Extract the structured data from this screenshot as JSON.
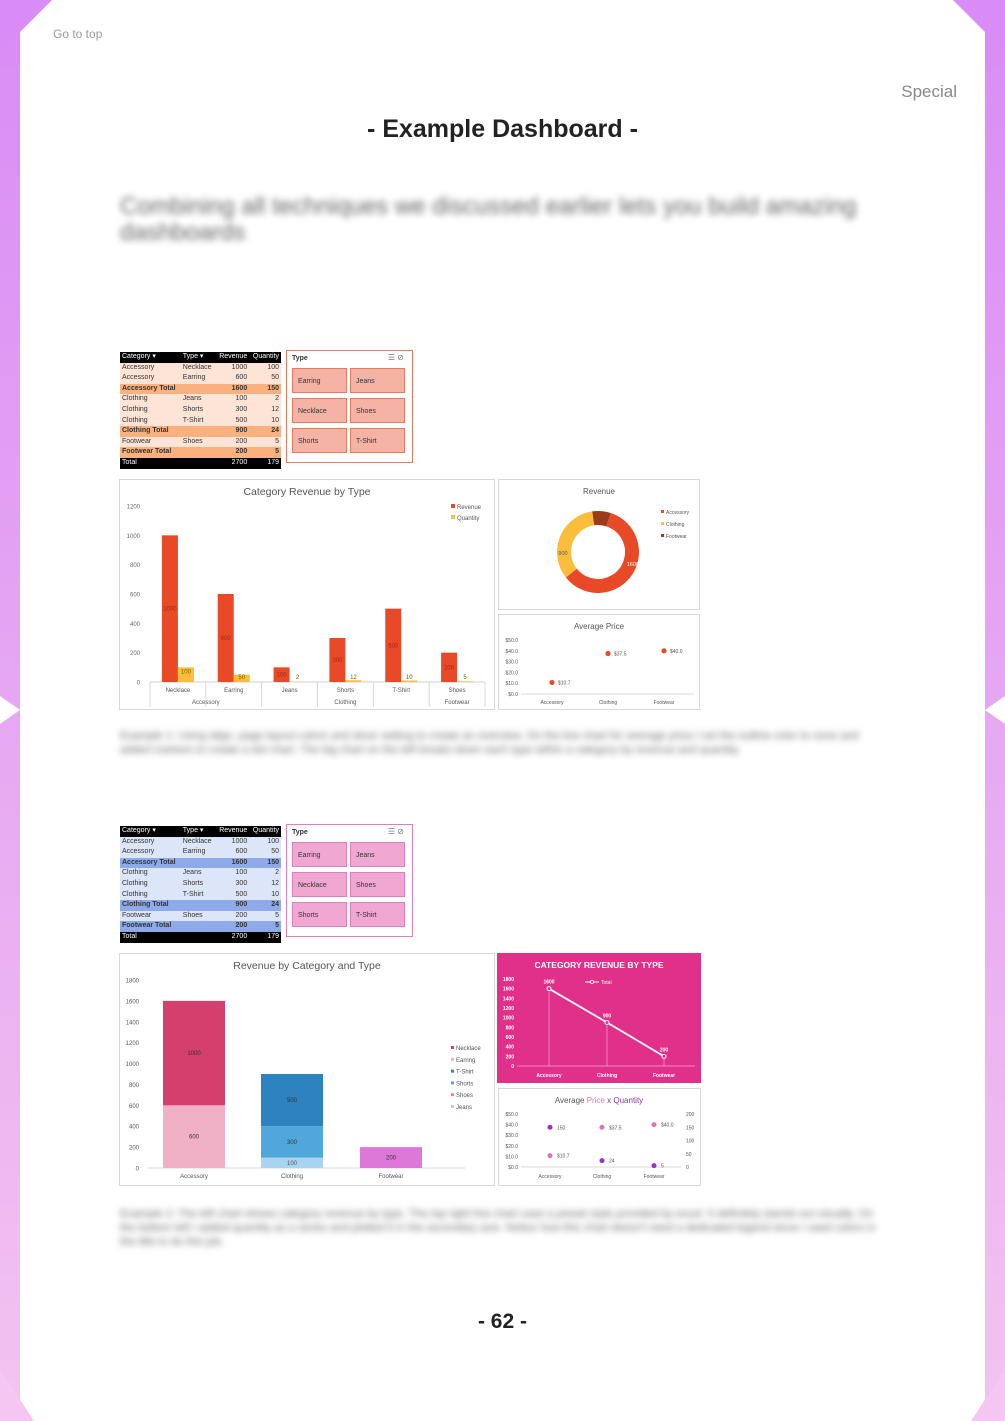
{
  "header": {
    "go_top": "Go to top",
    "section": "Special",
    "title": "- Example Dashboard -"
  },
  "intro": "Combining all techniques we discussed earlier lets you build amazing dashboards",
  "captions": {
    "example1": "Example 1: Using align, page layout colors and slicer setting to create an overview. On the line chart for average price I set the outline color to none and added markers to create a dot chart. The big chart on the left breaks down each type within a category by revenue and quantity.",
    "example2": "Example 2: The left chart shows category revenue by type. The top right line chart uses a preset style provided by excel. It definitely stands out visually. On the bottom left I added quantity as a series and plotted it in the secondary axis. Notice how this chart doesn't need a dedicated legend since I used colors in the title to do this job."
  },
  "page_number": "- 62 -",
  "pivot": {
    "headers": [
      "Category",
      "Type",
      "Revenue",
      "Quantity"
    ],
    "rows": [
      [
        "Accessory",
        "Necklace",
        "1000",
        "100"
      ],
      [
        "Accessory",
        "Earring",
        "600",
        "50"
      ],
      [
        "Accessory Total",
        "",
        "1600",
        "150"
      ],
      [
        "Clothing",
        "Jeans",
        "100",
        "2"
      ],
      [
        "Clothing",
        "Shorts",
        "300",
        "12"
      ],
      [
        "Clothing",
        "T-Shirt",
        "500",
        "10"
      ],
      [
        "Clothing Total",
        "",
        "900",
        "24"
      ],
      [
        "Footwear",
        "Shoes",
        "200",
        "5"
      ],
      [
        "Footwear Total",
        "",
        "200",
        "5"
      ],
      [
        "Total",
        "",
        "2700",
        "179"
      ]
    ]
  },
  "slicer": {
    "title": "Type",
    "items": [
      "Earring",
      "Jeans",
      "Necklace",
      "Shoes",
      "Shorts",
      "T-Shirt"
    ]
  },
  "colors": {
    "d1_header": "#000000",
    "d1_row": "#fde4d6",
    "d1_total": "#f9b27f",
    "d1_slicer_btn": "#f4b3a5",
    "d1_slicer_border": "#e9795f",
    "d2_row": "#dde5f8",
    "d2_total": "#8eaaea",
    "d2_slicer_btn": "#f0a8d3",
    "d2_slicer_border": "#df7fbd",
    "revenue": "#e84a27",
    "quantity": "#fbbe3c",
    "pink": "#e0308a"
  },
  "chart_data": [
    {
      "type": "bar",
      "title": "Category Revenue by Type",
      "categories": [
        "Necklace",
        "Earring",
        "Jeans",
        "Shorts",
        "T-Shirt",
        "Shoes"
      ],
      "groups": [
        {
          "name": "Accessory",
          "span": 2
        },
        {
          "name": "Clothing",
          "span": 3
        },
        {
          "name": "Footwear",
          "span": 1
        }
      ],
      "series": [
        {
          "name": "Revenue",
          "values": [
            1000,
            600,
            100,
            300,
            500,
            200
          ]
        },
        {
          "name": "Quantity",
          "values": [
            100,
            50,
            2,
            12,
            10,
            5
          ]
        }
      ],
      "ylim": [
        0,
        1200
      ],
      "yticks": [
        "0",
        "200",
        "400",
        "600",
        "800",
        "1000",
        "1200"
      ],
      "legend": "top-right"
    },
    {
      "type": "pie",
      "title": "Revenue",
      "labels": [
        "Accessory",
        "Clothing",
        "Footwear"
      ],
      "values": [
        1600,
        900,
        200
      ],
      "data_labels": [
        "1600",
        "900",
        ""
      ],
      "legend": "right"
    },
    {
      "type": "scatter",
      "title": "Average Price",
      "categories": [
        "Accessory",
        "Clothing",
        "Footwear"
      ],
      "values": [
        10.7,
        37.5,
        40.0
      ],
      "data_labels": [
        "$10.7",
        "$37.5",
        "$40.0"
      ],
      "ylim": [
        0,
        50
      ],
      "yticks": [
        "$0.0",
        "$10.0",
        "$20.0",
        "$30.0",
        "$40.0",
        "$50.0"
      ]
    },
    {
      "type": "bar",
      "stacked": true,
      "title": "Revenue by Category and Type",
      "categories": [
        "Accessory",
        "Clothing",
        "Footwear"
      ],
      "series": [
        {
          "name": "Necklace",
          "values": [
            1000,
            0,
            0
          ]
        },
        {
          "name": "Earring",
          "values": [
            600,
            0,
            0
          ]
        },
        {
          "name": "T-Shirt",
          "values": [
            0,
            500,
            0
          ]
        },
        {
          "name": "Shorts",
          "values": [
            0,
            300,
            0
          ]
        },
        {
          "name": "Shoes",
          "values": [
            0,
            0,
            200
          ]
        },
        {
          "name": "Jeans",
          "values": [
            0,
            100,
            0
          ]
        }
      ],
      "data_labels": [
        [
          "1000",
          "",
          ""
        ],
        [
          "600",
          "",
          ""
        ],
        [
          "",
          "500",
          ""
        ],
        [
          "",
          "300",
          ""
        ],
        [
          "",
          "",
          "200"
        ],
        [
          "",
          "100",
          ""
        ]
      ],
      "ylim": [
        0,
        1800
      ],
      "yticks": [
        "0",
        "200",
        "400",
        "600",
        "800",
        "1000",
        "1200",
        "1400",
        "1600",
        "1800"
      ],
      "legend": "right"
    },
    {
      "type": "line",
      "title": "CATEGORY REVENUE BY TYPE",
      "categories": [
        "Accessory",
        "Clothing",
        "Footwear"
      ],
      "series": [
        {
          "name": "Total",
          "values": [
            1600,
            900,
            200
          ]
        }
      ],
      "ylim": [
        0,
        1800
      ],
      "yticks": [
        "0",
        "200",
        "400",
        "600",
        "800",
        "1000",
        "1200",
        "1400",
        "1600",
        "1800"
      ],
      "background": "#e0308a"
    },
    {
      "type": "scatter",
      "title": "Average Price x Quantity",
      "title_parts": [
        "Average ",
        "Price",
        " x ",
        "Quantity"
      ],
      "categories": [
        "Accessory",
        "Clothing",
        "Footwear"
      ],
      "series": [
        {
          "name": "Price",
          "values": [
            10.7,
            37.5,
            40.0
          ],
          "labels": [
            "$10.7",
            "$37.5",
            "$40.0"
          ],
          "axis": "left"
        },
        {
          "name": "Quantity",
          "values": [
            150,
            24,
            5
          ],
          "labels": [
            "150",
            "24",
            "5"
          ],
          "axis": "right"
        }
      ],
      "ylim": [
        0,
        50
      ],
      "y2lim": [
        0,
        200
      ],
      "yticks": [
        "$0.0",
        "$10.0",
        "$20.0",
        "$30.0",
        "$40.0",
        "$50.0"
      ],
      "y2ticks": [
        "0",
        "50",
        "100",
        "150",
        "200"
      ]
    }
  ]
}
